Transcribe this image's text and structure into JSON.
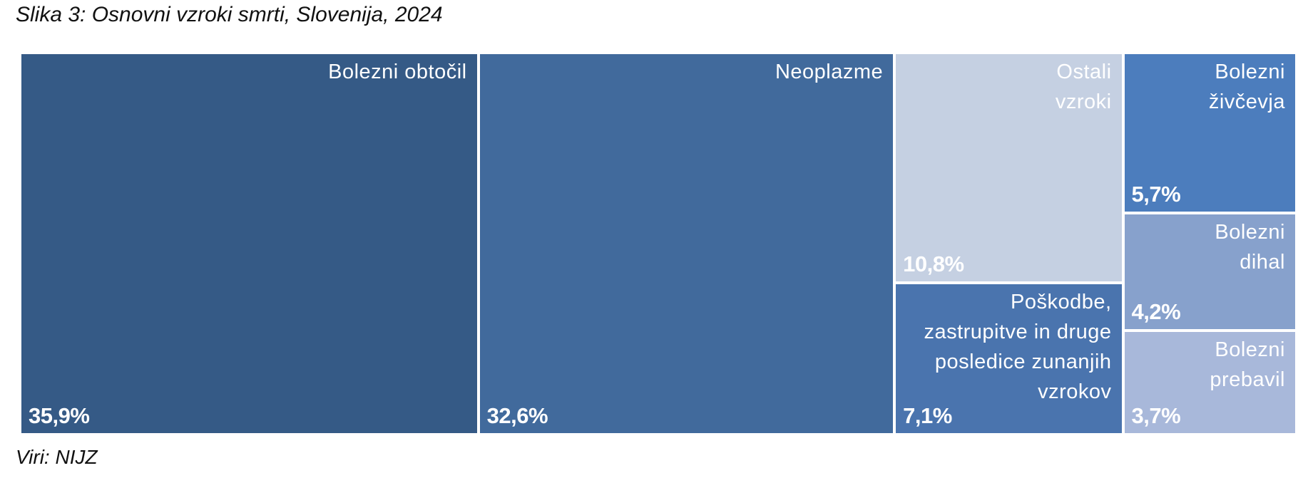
{
  "title": "Slika 3: Osnovni vzroki smrti, Slovenija, 2024",
  "source": "Viri: NIJZ",
  "chart_data": {
    "type": "treemap",
    "title": "Slika 3: Osnovni vzroki smrti, Slovenija, 2024",
    "unit": "%",
    "items": [
      {
        "name": "Bolezni obtočil",
        "lines": [
          "Bolezni obtočil"
        ],
        "value": 35.9,
        "value_label": "35,9%",
        "color": "#355a86",
        "text_color": "#ffffff"
      },
      {
        "name": "Neoplazme",
        "lines": [
          "Neoplazme"
        ],
        "value": 32.6,
        "value_label": "32,6%",
        "color": "#416a9c",
        "text_color": "#ffffff"
      },
      {
        "name": "Ostali vzroki",
        "lines": [
          "Ostali",
          "vzroki"
        ],
        "value": 10.8,
        "value_label": "10,8%",
        "color": "#c5d0e2",
        "text_color": "#ffffff"
      },
      {
        "name": "Poškodbe, zastrupitve in druge posledice zunanjih vzrokov",
        "lines": [
          "Poškodbe,",
          "zastrupitve in druge",
          "posledice zunanjih",
          "vzrokov"
        ],
        "value": 7.1,
        "value_label": "7,1%",
        "color": "#4a74ae",
        "text_color": "#ffffff"
      },
      {
        "name": "Bolezni živčevja",
        "lines": [
          "Bolezni",
          "živčevja"
        ],
        "value": 5.7,
        "value_label": "5,7%",
        "color": "#4c7dbd",
        "text_color": "#ffffff"
      },
      {
        "name": "Bolezni dihal",
        "lines": [
          "Bolezni",
          "dihal"
        ],
        "value": 4.2,
        "value_label": "4,2%",
        "color": "#87a1cc",
        "text_color": "#ffffff"
      },
      {
        "name": "Bolezni prebavil",
        "lines": [
          "Bolezni",
          "prebavil"
        ],
        "value": 3.7,
        "value_label": "3,7%",
        "color": "#a8b8da",
        "text_color": "#ffffff"
      }
    ]
  }
}
